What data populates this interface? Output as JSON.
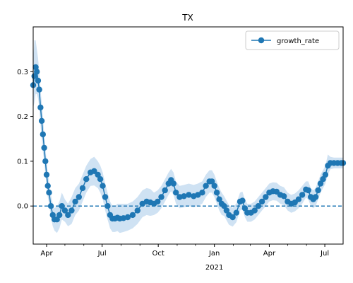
{
  "chart_data": {
    "type": "line",
    "title": "TX",
    "xlabel": "",
    "ylabel": "",
    "xlim": [
      "2020-03-10",
      "2021-07-31"
    ],
    "ylim": [
      -0.085,
      0.4
    ],
    "x_ticks": [
      {
        "date": "2020-04-01",
        "label": "Apr",
        "sublabel": ""
      },
      {
        "date": "2020-07-01",
        "label": "Jul",
        "sublabel": ""
      },
      {
        "date": "2020-10-01",
        "label": "Oct",
        "sublabel": ""
      },
      {
        "date": "2021-01-01",
        "label": "Jan",
        "sublabel": "2021"
      },
      {
        "date": "2021-04-01",
        "label": "Apr",
        "sublabel": ""
      },
      {
        "date": "2021-07-01",
        "label": "Jul",
        "sublabel": ""
      }
    ],
    "y_ticks": [
      {
        "value": 0.0,
        "label": "0.0"
      },
      {
        "value": 0.1,
        "label": "0.1"
      },
      {
        "value": 0.2,
        "label": "0.2"
      },
      {
        "value": 0.3,
        "label": "0.3"
      }
    ],
    "reference_line": {
      "y": 0.0,
      "style": "dashed",
      "color": "#1f77b4"
    },
    "legend": {
      "position": "top-right",
      "entries": [
        "growth_rate"
      ]
    },
    "grid": false,
    "series": [
      {
        "name": "growth_rate",
        "color": "#1f77b4",
        "band_color": "#cfe2f3",
        "x": [
          "2020-03-10",
          "2020-03-12",
          "2020-03-14",
          "2020-03-16",
          "2020-03-18",
          "2020-03-20",
          "2020-03-22",
          "2020-03-24",
          "2020-03-26",
          "2020-03-28",
          "2020-03-30",
          "2020-04-01",
          "2020-04-03",
          "2020-04-05",
          "2020-04-08",
          "2020-04-11",
          "2020-04-14",
          "2020-04-18",
          "2020-04-22",
          "2020-04-26",
          "2020-05-01",
          "2020-05-06",
          "2020-05-12",
          "2020-05-18",
          "2020-05-24",
          "2020-05-30",
          "2020-06-05",
          "2020-06-12",
          "2020-06-18",
          "2020-06-24",
          "2020-06-28",
          "2020-07-02",
          "2020-07-06",
          "2020-07-10",
          "2020-07-14",
          "2020-07-18",
          "2020-07-22",
          "2020-07-26",
          "2020-07-30",
          "2020-08-05",
          "2020-08-12",
          "2020-08-20",
          "2020-08-28",
          "2020-09-05",
          "2020-09-12",
          "2020-09-18",
          "2020-09-24",
          "2020-09-30",
          "2020-10-06",
          "2020-10-12",
          "2020-10-18",
          "2020-10-22",
          "2020-10-26",
          "2020-10-30",
          "2020-11-05",
          "2020-11-12",
          "2020-11-20",
          "2020-11-28",
          "2020-12-05",
          "2020-12-12",
          "2020-12-18",
          "2020-12-24",
          "2020-12-28",
          "2021-01-01",
          "2021-01-05",
          "2021-01-09",
          "2021-01-13",
          "2021-01-17",
          "2021-01-21",
          "2021-01-25",
          "2021-01-31",
          "2021-02-06",
          "2021-02-12",
          "2021-02-16",
          "2021-02-20",
          "2021-02-24",
          "2021-03-02",
          "2021-03-08",
          "2021-03-14",
          "2021-03-20",
          "2021-03-26",
          "2021-04-01",
          "2021-04-07",
          "2021-04-13",
          "2021-04-19",
          "2021-04-25",
          "2021-05-01",
          "2021-05-07",
          "2021-05-13",
          "2021-05-19",
          "2021-05-25",
          "2021-05-31",
          "2021-06-04",
          "2021-06-08",
          "2021-06-12",
          "2021-06-16",
          "2021-06-20",
          "2021-06-24",
          "2021-06-28",
          "2021-07-02",
          "2021-07-06",
          "2021-07-10",
          "2021-07-16",
          "2021-07-22",
          "2021-07-28",
          "2021-07-31"
        ],
        "y": [
          0.27,
          0.29,
          0.31,
          0.3,
          0.28,
          0.26,
          0.22,
          0.19,
          0.16,
          0.13,
          0.1,
          0.07,
          0.045,
          0.03,
          0.0,
          -0.02,
          -0.03,
          -0.03,
          -0.02,
          0.0,
          -0.01,
          -0.02,
          -0.01,
          0.01,
          0.02,
          0.04,
          0.06,
          0.075,
          0.078,
          0.07,
          0.06,
          0.045,
          0.02,
          0.0,
          -0.02,
          -0.028,
          -0.028,
          -0.026,
          -0.028,
          -0.027,
          -0.025,
          -0.02,
          -0.01,
          0.005,
          0.01,
          0.008,
          0.005,
          0.01,
          0.02,
          0.035,
          0.05,
          0.058,
          0.05,
          0.03,
          0.02,
          0.022,
          0.025,
          0.022,
          0.025,
          0.03,
          0.045,
          0.055,
          0.055,
          0.045,
          0.03,
          0.015,
          0.005,
          0.0,
          -0.01,
          -0.02,
          -0.025,
          -0.015,
          0.01,
          0.012,
          -0.005,
          -0.015,
          -0.015,
          -0.01,
          0.0,
          0.01,
          0.02,
          0.03,
          0.033,
          0.032,
          0.025,
          0.022,
          0.01,
          0.005,
          0.008,
          0.015,
          0.025,
          0.037,
          0.035,
          0.02,
          0.015,
          0.02,
          0.035,
          0.05,
          0.06,
          0.07,
          0.09,
          0.096,
          0.096,
          0.096,
          0.096,
          0.096
        ],
        "upper": [
          0.33,
          0.37,
          0.37,
          0.35,
          0.33,
          0.3,
          0.26,
          0.23,
          0.2,
          0.16,
          0.13,
          0.1,
          0.075,
          0.055,
          0.025,
          0.005,
          -0.005,
          0.0,
          0.01,
          0.03,
          0.015,
          0.005,
          0.02,
          0.04,
          0.05,
          0.07,
          0.09,
          0.105,
          0.11,
          0.1,
          0.09,
          0.075,
          0.05,
          0.03,
          0.01,
          0.0,
          0.0,
          0.005,
          0.005,
          0.005,
          0.005,
          0.01,
          0.02,
          0.035,
          0.04,
          0.038,
          0.03,
          0.035,
          0.045,
          0.06,
          0.075,
          0.083,
          0.075,
          0.055,
          0.045,
          0.047,
          0.05,
          0.047,
          0.05,
          0.055,
          0.07,
          0.08,
          0.08,
          0.07,
          0.055,
          0.04,
          0.03,
          0.022,
          0.012,
          0.002,
          -0.004,
          0.006,
          0.03,
          0.032,
          0.015,
          0.005,
          0.005,
          0.01,
          0.02,
          0.03,
          0.04,
          0.05,
          0.053,
          0.052,
          0.045,
          0.042,
          0.03,
          0.025,
          0.028,
          0.035,
          0.045,
          0.055,
          0.055,
          0.04,
          0.035,
          0.04,
          0.055,
          0.07,
          0.08,
          0.09,
          0.115,
          0.11,
          0.108,
          0.108,
          0.108,
          0.108
        ],
        "lower": [
          0.22,
          0.23,
          0.25,
          0.25,
          0.24,
          0.22,
          0.18,
          0.15,
          0.12,
          0.1,
          0.07,
          0.045,
          0.02,
          0.005,
          -0.025,
          -0.045,
          -0.055,
          -0.06,
          -0.05,
          -0.03,
          -0.035,
          -0.045,
          -0.04,
          -0.02,
          -0.01,
          0.01,
          0.03,
          0.045,
          0.046,
          0.04,
          0.03,
          0.015,
          -0.01,
          -0.03,
          -0.05,
          -0.058,
          -0.058,
          -0.056,
          -0.06,
          -0.058,
          -0.055,
          -0.05,
          -0.04,
          -0.025,
          -0.02,
          -0.022,
          -0.02,
          -0.015,
          -0.005,
          0.01,
          0.025,
          0.033,
          0.025,
          0.005,
          -0.005,
          -0.003,
          0.0,
          -0.003,
          0.0,
          0.005,
          0.02,
          0.03,
          0.03,
          0.02,
          0.005,
          -0.01,
          -0.02,
          -0.022,
          -0.032,
          -0.042,
          -0.046,
          -0.036,
          -0.01,
          -0.008,
          -0.025,
          -0.035,
          -0.035,
          -0.03,
          -0.02,
          -0.01,
          0.0,
          0.01,
          0.013,
          0.012,
          0.005,
          0.002,
          -0.01,
          -0.015,
          -0.012,
          -0.005,
          0.005,
          0.019,
          0.015,
          0.0,
          -0.005,
          0.0,
          0.015,
          0.03,
          0.04,
          0.05,
          0.07,
          0.082,
          0.084,
          0.084,
          0.084,
          0.084
        ]
      }
    ]
  }
}
